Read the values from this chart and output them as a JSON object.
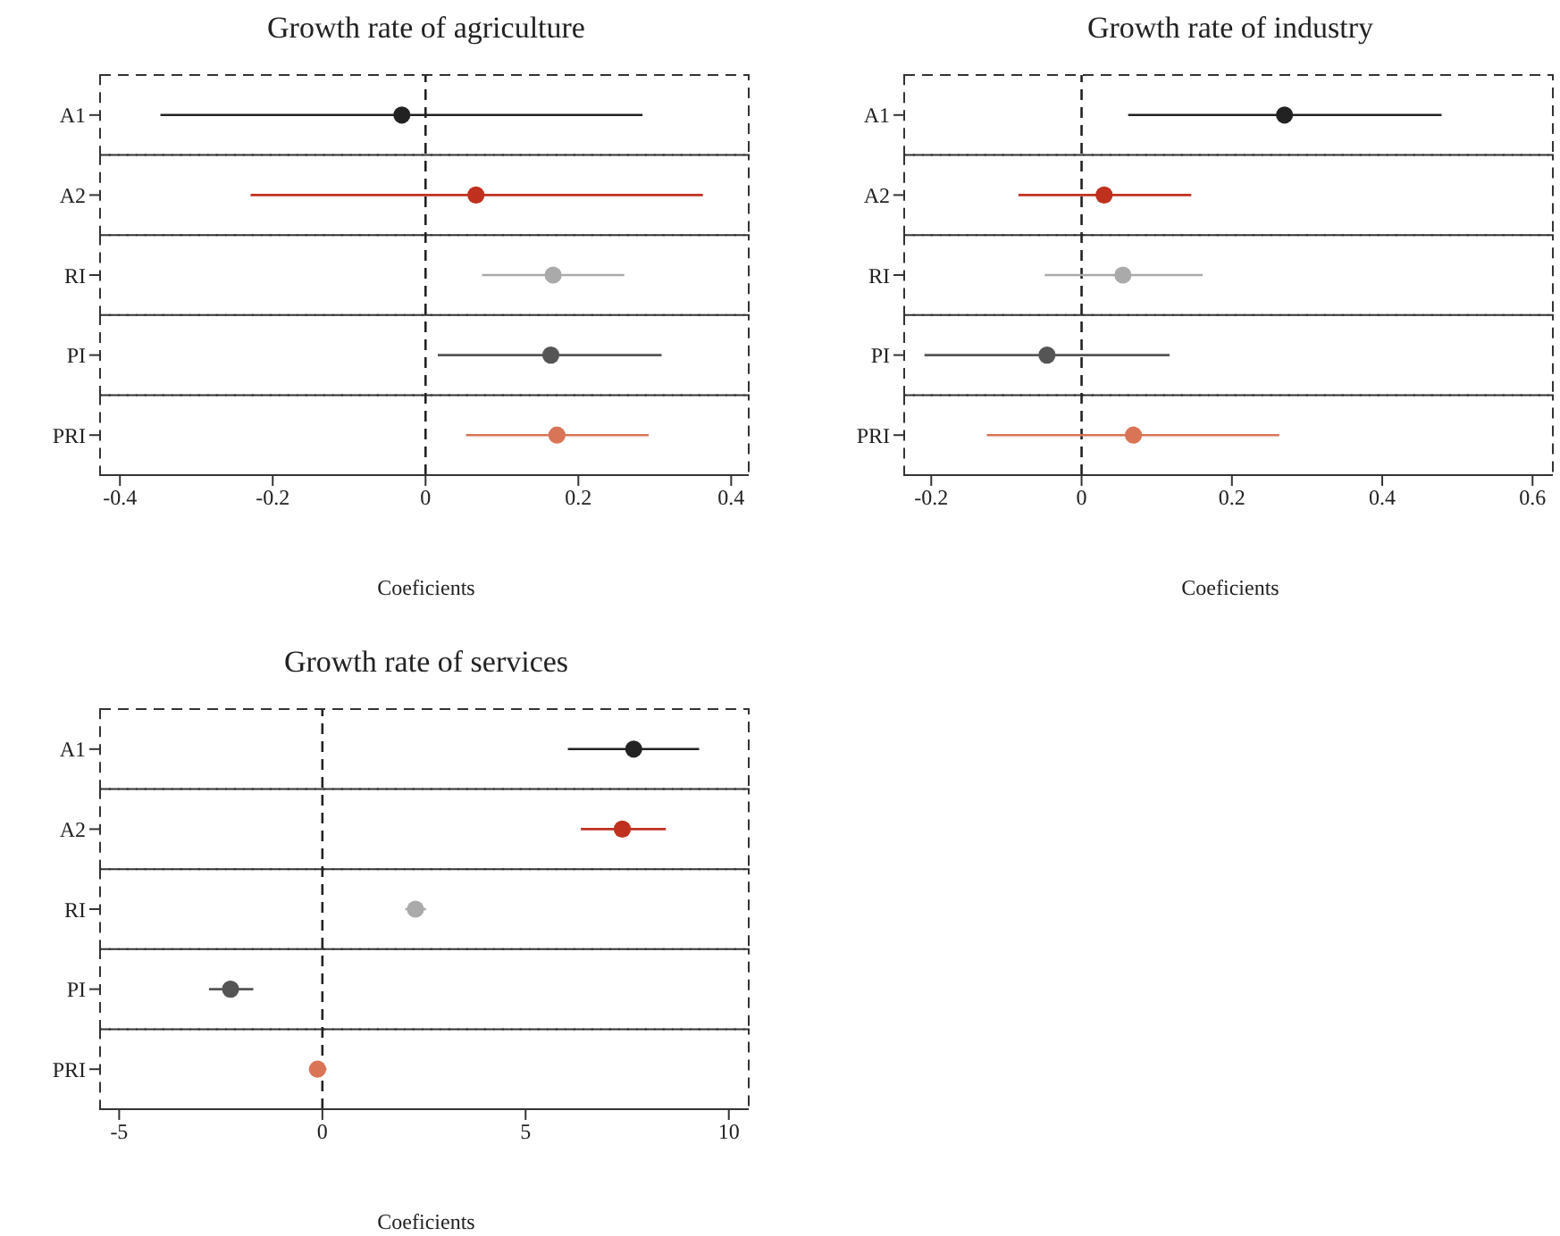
{
  "chart_data": [
    {
      "type": "scatter",
      "orientation": "horizontal",
      "title": "Growth rate of agriculture",
      "xlabel": "Coeficients",
      "marker": "circle",
      "categories": [
        "A1",
        "A2",
        "RI",
        "PI",
        "PRI"
      ],
      "values": [
        -0.031,
        0.066,
        0.167,
        0.164,
        0.172
      ],
      "errors": [
        [
          -0.347,
          0.284
        ],
        [
          -0.229,
          0.363
        ],
        [
          0.074,
          0.26
        ],
        [
          0.016,
          0.309
        ],
        [
          0.053,
          0.292
        ]
      ],
      "colors": [
        "#222222",
        "#c0301f",
        "#aaaaaa",
        "#555555",
        "#d97456"
      ],
      "xlim": [
        -0.426,
        0.423
      ],
      "xticks": [
        -0.4,
        -0.2,
        0,
        0.2,
        0.4
      ],
      "ref_lines": [
        {
          "axis": "x",
          "value": 0,
          "line_style": "dashed"
        }
      ]
    },
    {
      "type": "scatter",
      "orientation": "horizontal",
      "title": "Growth rate of industry",
      "xlabel": "Coeficients",
      "marker": "circle",
      "categories": [
        "A1",
        "A2",
        "RI",
        "PI",
        "PRI"
      ],
      "values": [
        0.27,
        0.03,
        0.055,
        -0.046,
        0.069
      ],
      "errors": [
        [
          0.062,
          0.479
        ],
        [
          -0.084,
          0.146
        ],
        [
          -0.049,
          0.161
        ],
        [
          -0.209,
          0.117
        ],
        [
          -0.126,
          0.263
        ]
      ],
      "colors": [
        "#222222",
        "#c0301f",
        "#aaaaaa",
        "#555555",
        "#d97456"
      ],
      "xlim": [
        -0.236,
        0.627
      ],
      "xticks": [
        -0.2,
        0,
        0.2,
        0.4,
        0.6
      ],
      "ref_lines": [
        {
          "axis": "x",
          "value": 0,
          "line_style": "dashed"
        }
      ]
    },
    {
      "type": "scatter",
      "orientation": "horizontal",
      "title": "Growth rate of services",
      "xlabel": "Coeficients",
      "marker": "circle",
      "categories": [
        "A1",
        "A2",
        "RI",
        "PI",
        "PRI"
      ],
      "values": [
        7.66,
        7.38,
        2.29,
        -2.26,
        -0.12
      ],
      "errors": [
        [
          6.04,
          9.27
        ],
        [
          6.36,
          8.45
        ],
        [
          2.04,
          2.55
        ],
        [
          -2.79,
          -1.7
        ],
        [
          -0.33,
          0.1
        ]
      ],
      "colors": [
        "#222222",
        "#c0301f",
        "#aaaaaa",
        "#555555",
        "#d97456"
      ],
      "xlim": [
        -5.47,
        10.49
      ],
      "xticks": [
        -5,
        0,
        5,
        10
      ],
      "ref_lines": [
        {
          "axis": "x",
          "value": 0,
          "line_style": "dashed"
        }
      ]
    }
  ]
}
